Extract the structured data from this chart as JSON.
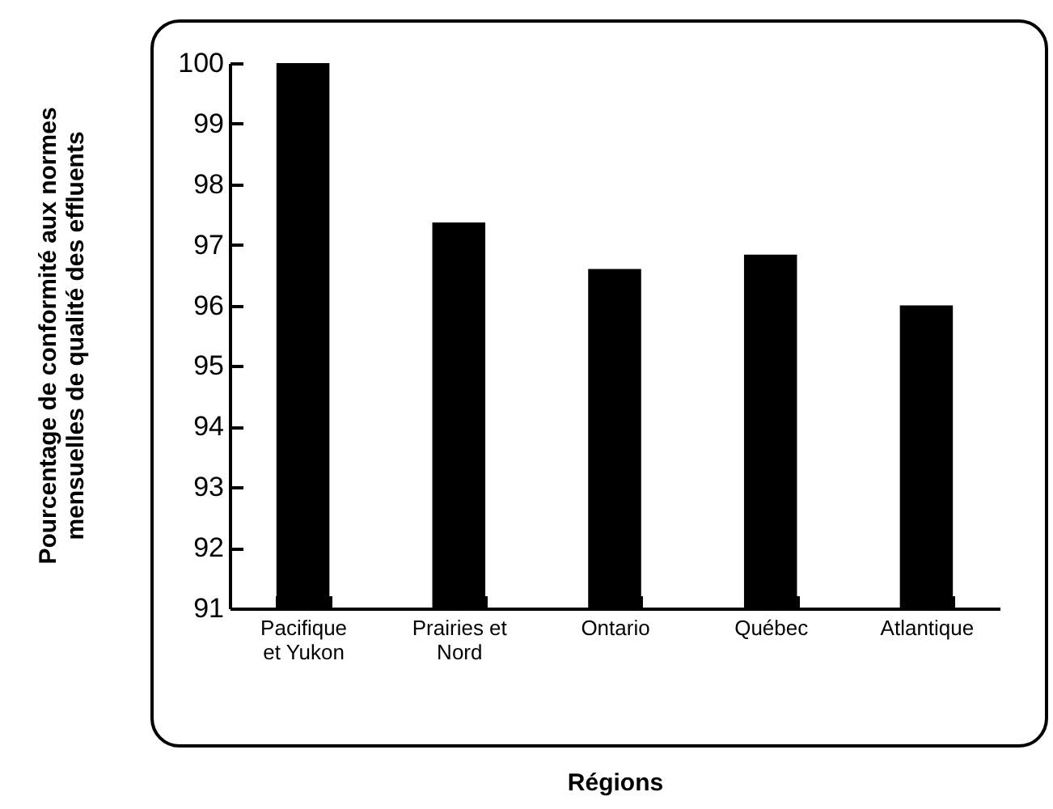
{
  "chart_data": {
    "type": "bar",
    "xlabel": "Régions",
    "ylabel": "Pourcentage de conformité aux normes mensuelles de qualité des effluents",
    "categories": [
      "Pacifique et Yukon",
      "Prairies et Nord",
      "Ontario",
      "Québec",
      "Atlantique"
    ],
    "values": [
      100,
      97.37,
      96.6,
      96.84,
      96.0
    ],
    "color": "#000000",
    "ylim": [
      91,
      100
    ],
    "yticks": [
      91,
      92,
      93,
      94,
      95,
      96,
      97,
      98,
      99,
      100
    ],
    "grid": false
  }
}
